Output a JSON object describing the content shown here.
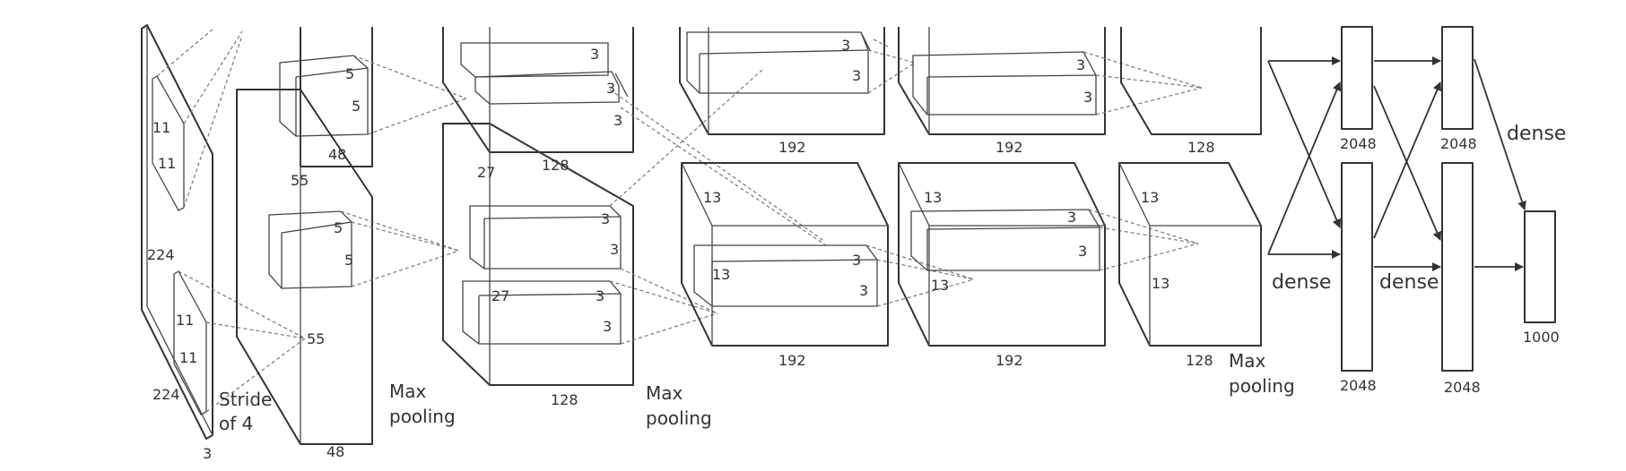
{
  "input": {
    "height": "224",
    "width": "224",
    "depth": "3",
    "kernel_top_h": "11",
    "kernel_top_w": "11",
    "kernel_bot_h": "11",
    "kernel_bot_w": "11",
    "stride": [
      "Stride",
      "of 4"
    ]
  },
  "conv1": {
    "spatial_top": "55",
    "spatial_bot": "55",
    "depth": "48",
    "depth_top": "48",
    "kernel_top_a": "5",
    "kernel_top_b": "5",
    "kernel_bot_a": "5",
    "kernel_bot_b": "5"
  },
  "pool1": [
    "Max",
    "pooling"
  ],
  "conv2": {
    "spatial_top": "27",
    "spatial_bot": "27",
    "depth_top": "128",
    "depth_bot": "128",
    "kernel_labels_top": [
      "3",
      "3",
      "3"
    ],
    "kernel_labels_bot": [
      "3",
      "3",
      "3",
      "3"
    ]
  },
  "pool2": [
    "Max",
    "pooling"
  ],
  "conv3": {
    "spatial_a": "13",
    "spatial_b": "13",
    "depth_top": "192",
    "depth_bot": "192",
    "kernel_labels": [
      "3",
      "3",
      "3",
      "3"
    ]
  },
  "conv4": {
    "spatial_a": "13",
    "spatial_b": "13",
    "depth_top": "192",
    "depth_bot": "192",
    "kernel_labels": [
      "3",
      "3",
      "3",
      "3"
    ]
  },
  "conv5": {
    "spatial_a": "13",
    "spatial_b": "13",
    "depth_top": "128",
    "depth_bot": "128"
  },
  "pool3": [
    "Max",
    "pooling"
  ],
  "dense1": {
    "top": "2048",
    "bot": "2048",
    "label": "dense"
  },
  "dense2": {
    "top": "2048",
    "bot": "2048",
    "label": "dense"
  },
  "dense3": {
    "label": "dense"
  },
  "output": {
    "size": "1000"
  }
}
